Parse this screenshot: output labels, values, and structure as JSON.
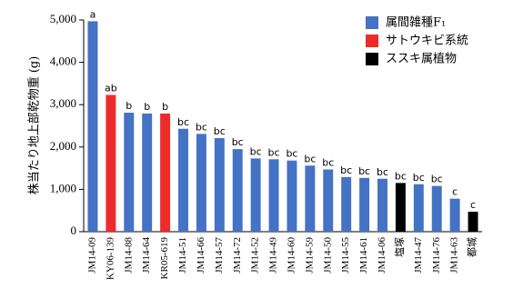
{
  "chart_data": {
    "type": "bar",
    "ylabel": "株当たり地上部乾物重 (g)",
    "ylim": [
      0,
      5000
    ],
    "yticks": [
      "0",
      "1,000",
      "2,000",
      "3,000",
      "4,000",
      "5,000"
    ],
    "ytick_values": [
      0,
      1000,
      2000,
      3000,
      4000,
      5000
    ],
    "grid": false,
    "legend_position": "top-right",
    "legend": [
      {
        "key": "f1",
        "label": "属間雑種F₁",
        "color": "#4472C4"
      },
      {
        "key": "cane",
        "label": "サトウキビ系統",
        "color": "#EE2B2B"
      },
      {
        "key": "miscanthus",
        "label": "ススキ属植物",
        "color": "#000000"
      }
    ],
    "bars": [
      {
        "category": "JM14-09",
        "value": 4970,
        "group": "f1",
        "sig": "a"
      },
      {
        "category": "KY06-139",
        "value": 3230,
        "group": "cane",
        "sig": "ab"
      },
      {
        "category": "JM14-88",
        "value": 2810,
        "group": "f1",
        "sig": "b"
      },
      {
        "category": "JM14-64",
        "value": 2790,
        "group": "f1",
        "sig": "b"
      },
      {
        "category": "KR05-619",
        "value": 2790,
        "group": "cane",
        "sig": "b"
      },
      {
        "category": "JM14-51",
        "value": 2430,
        "group": "f1",
        "sig": "bc"
      },
      {
        "category": "JM14-66",
        "value": 2310,
        "group": "f1",
        "sig": "bc"
      },
      {
        "category": "JM14-57",
        "value": 2210,
        "group": "f1",
        "sig": "bc"
      },
      {
        "category": "JM14-72",
        "value": 1950,
        "group": "f1",
        "sig": "bc"
      },
      {
        "category": "JM14-52",
        "value": 1730,
        "group": "f1",
        "sig": "bc"
      },
      {
        "category": "JM14-49",
        "value": 1710,
        "group": "f1",
        "sig": "bc"
      },
      {
        "category": "JM14-60",
        "value": 1680,
        "group": "f1",
        "sig": "bc"
      },
      {
        "category": "JM14-59",
        "value": 1560,
        "group": "f1",
        "sig": "bc"
      },
      {
        "category": "JM14-50",
        "value": 1470,
        "group": "f1",
        "sig": "bc"
      },
      {
        "category": "JM14-55",
        "value": 1290,
        "group": "f1",
        "sig": "bc"
      },
      {
        "category": "JM14-61",
        "value": 1270,
        "group": "f1",
        "sig": "bc"
      },
      {
        "category": "JM14-06",
        "value": 1250,
        "group": "f1",
        "sig": "bc"
      },
      {
        "category": "塩塚",
        "value": 1150,
        "group": "miscanthus",
        "sig": "bc"
      },
      {
        "category": "JM14-47",
        "value": 1120,
        "group": "f1",
        "sig": "bc"
      },
      {
        "category": "JM14-76",
        "value": 1080,
        "group": "f1",
        "sig": "bc"
      },
      {
        "category": "JM14-63",
        "value": 780,
        "group": "f1",
        "sig": "c"
      },
      {
        "category": "都城",
        "value": 470,
        "group": "miscanthus",
        "sig": "c"
      }
    ]
  }
}
